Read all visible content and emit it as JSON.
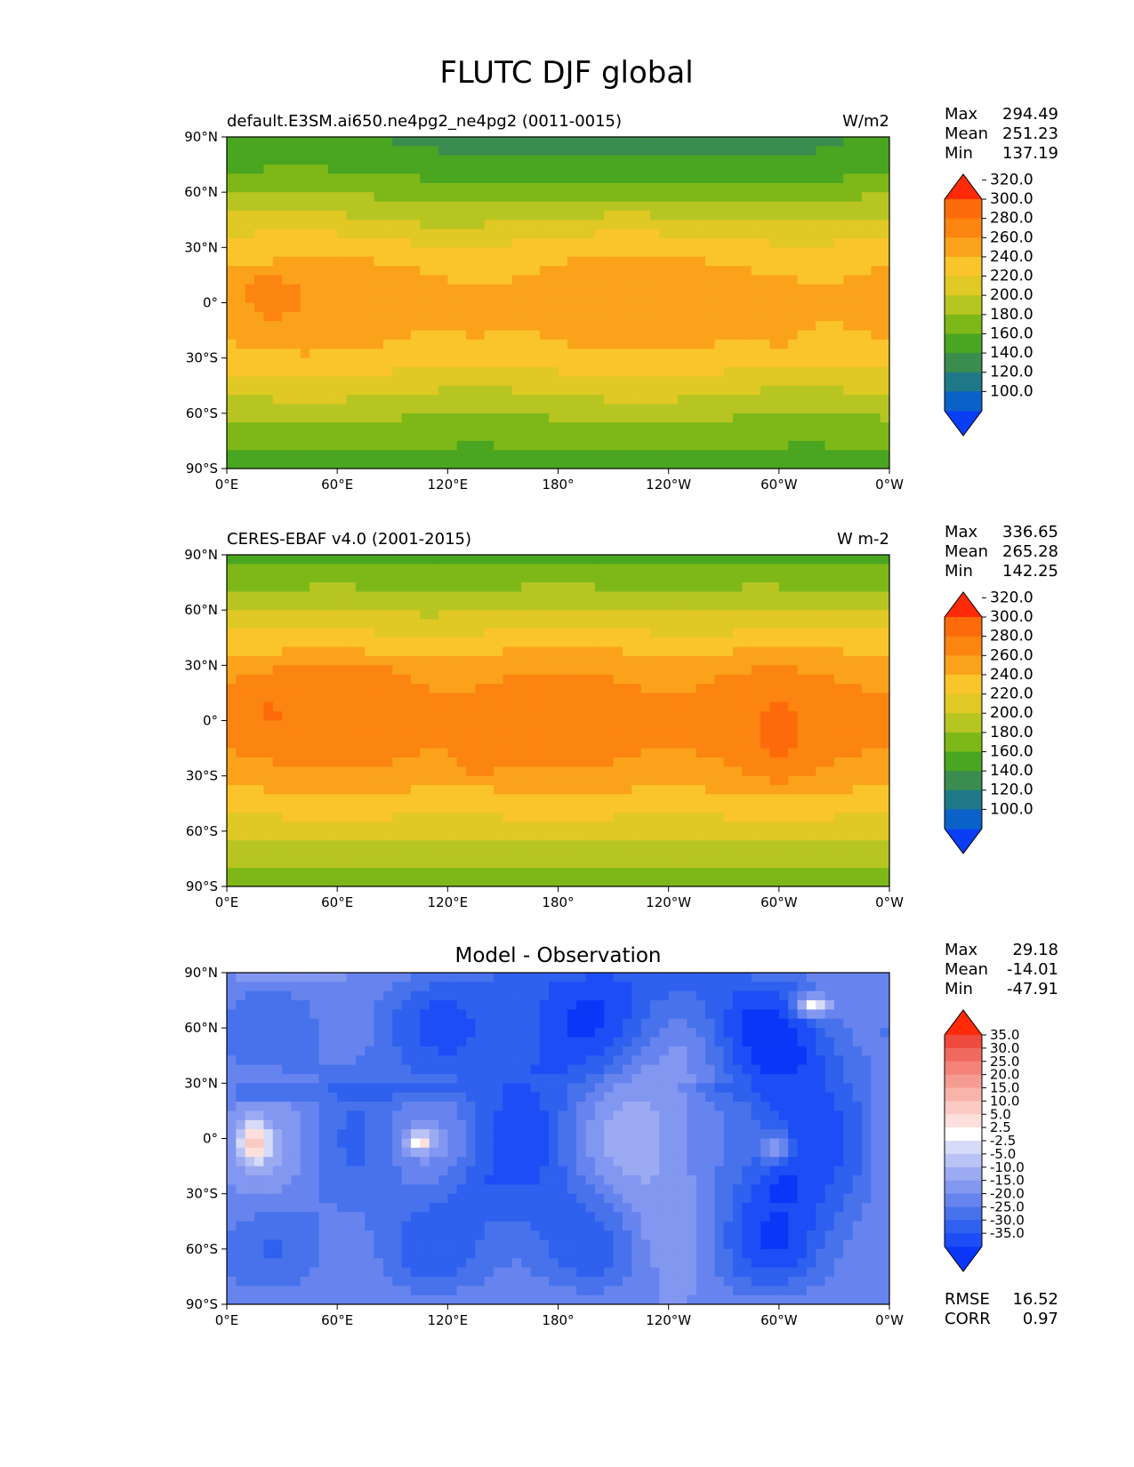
{
  "figure": {
    "title": "FLUTC DJF global"
  },
  "colors": {
    "field_levels": [
      "#0a3ef5",
      "#0a62c9",
      "#1f7888",
      "#3a8d4f",
      "#4aa520",
      "#7db818",
      "#b7c522",
      "#e0c825",
      "#fac52a",
      "#fba21b",
      "#fc8410",
      "#fd6a0b",
      "#ff2a08"
    ],
    "diff_levels": [
      "#0a37f7",
      "#1c4df5",
      "#2f60ee",
      "#4772ec",
      "#6784ee",
      "#8297f0",
      "#9caaf2",
      "#b9c3f5",
      "#d6dcf8",
      "#ffffff",
      "#fde0dc",
      "#fbcac3",
      "#f8b3aa",
      "#f59b91",
      "#f38278",
      "#f0695f",
      "#ee4a3e",
      "#ff2a08"
    ]
  },
  "chart_data": [
    {
      "type": "heatmap",
      "name": "panel-model",
      "title_left": "default.E3SM.ai650.ne4pg2_ne4pg2 (0011-0015)",
      "title_right": "W/m2",
      "title_center": "",
      "xlim": [
        0,
        360
      ],
      "ylim": [
        -90,
        90
      ],
      "x_ticks": [
        "0°E",
        "60°E",
        "120°E",
        "180°",
        "120°W",
        "60°W",
        "0°W"
      ],
      "y_ticks": [
        "90°N",
        "60°N",
        "30°N",
        "0°",
        "30°S",
        "60°S",
        "90°S"
      ],
      "stats": {
        "max_label": "Max",
        "max": "294.49",
        "mean_label": "Mean",
        "mean": "251.23",
        "min_label": "Min",
        "min": "137.19"
      },
      "colorbar": {
        "extend": "both",
        "ticks": [
          "100.0",
          "120.0",
          "140.0",
          "160.0",
          "180.0",
          "200.0",
          "220.0",
          "240.0",
          "260.0",
          "280.0",
          "300.0",
          "320.0"
        ]
      }
    },
    {
      "type": "heatmap",
      "name": "panel-obs",
      "title_left": "CERES-EBAF v4.0 (2001-2015)",
      "title_right": "W m-2",
      "title_center": "",
      "xlim": [
        0,
        360
      ],
      "ylim": [
        -90,
        90
      ],
      "x_ticks": [
        "0°E",
        "60°E",
        "120°E",
        "180°",
        "120°W",
        "60°W",
        "0°W"
      ],
      "y_ticks": [
        "90°N",
        "60°N",
        "30°N",
        "0°",
        "30°S",
        "60°S",
        "90°S"
      ],
      "stats": {
        "max_label": "Max",
        "max": "336.65",
        "mean_label": "Mean",
        "mean": "265.28",
        "min_label": "Min",
        "min": "142.25"
      },
      "colorbar": {
        "extend": "both",
        "ticks": [
          "100.0",
          "120.0",
          "140.0",
          "160.0",
          "180.0",
          "200.0",
          "220.0",
          "240.0",
          "260.0",
          "280.0",
          "300.0",
          "320.0"
        ]
      }
    },
    {
      "type": "heatmap",
      "name": "panel-diff",
      "title_left": "",
      "title_right": "",
      "title_center": "Model - Observation",
      "xlim": [
        0,
        360
      ],
      "ylim": [
        -90,
        90
      ],
      "x_ticks": [
        "0°E",
        "60°E",
        "120°E",
        "180°",
        "120°W",
        "60°W",
        "0°W"
      ],
      "y_ticks": [
        "90°N",
        "60°N",
        "30°N",
        "0°",
        "30°S",
        "60°S",
        "90°S"
      ],
      "stats": {
        "max_label": "Max",
        "max": "29.18",
        "mean_label": "Mean",
        "mean": "-14.01",
        "min_label": "Min",
        "min": "-47.91"
      },
      "colorbar": {
        "extend": "both",
        "ticks": [
          "-35.0",
          "-30.0",
          "-25.0",
          "-20.0",
          "-15.0",
          "-10.0",
          "-5.0",
          "-2.5",
          "2.5",
          "5.0",
          "10.0",
          "15.0",
          "20.0",
          "25.0",
          "30.0",
          "35.0"
        ]
      },
      "metrics": {
        "rmse_label": "RMSE",
        "rmse": "16.52",
        "corr_label": "CORR",
        "corr": "0.97"
      }
    }
  ]
}
